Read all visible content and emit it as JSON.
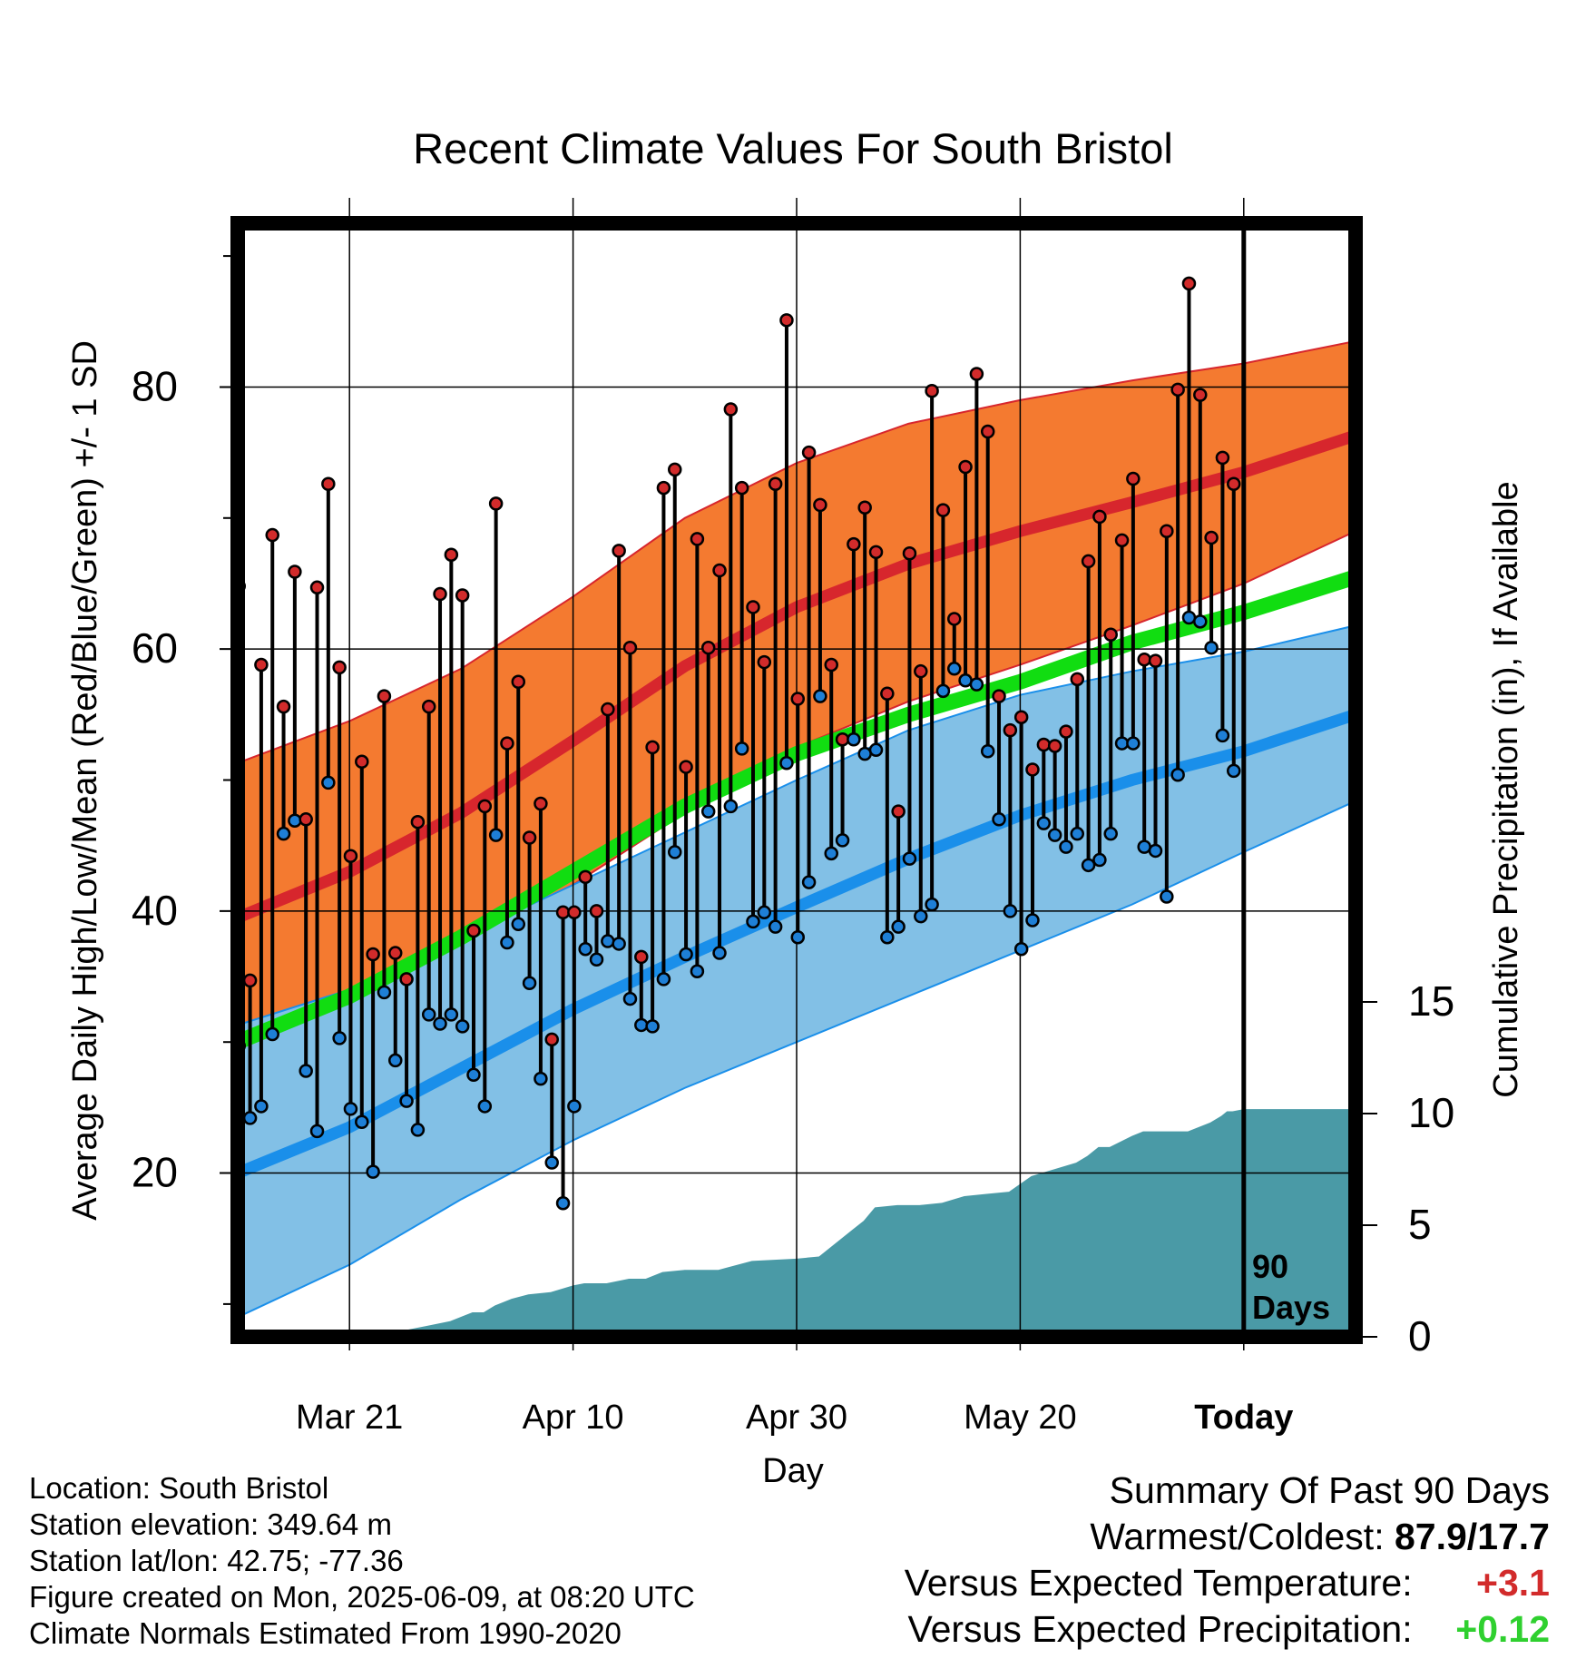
{
  "chart_data": {
    "type": "line",
    "title": "Recent Climate Values For South Bristol",
    "xlabel": "Day",
    "ylabel": "Average Daily High/Low/Mean (Red/Blue/Green) +/- 1 SD",
    "y2label": "Cumulative Precipitation (in), If Available",
    "x_tick_labels": [
      "Mar 21",
      "Apr 10",
      "Apr 30",
      "May 20",
      "Today"
    ],
    "y_ticks": [
      20,
      40,
      60,
      80
    ],
    "y2_ticks": [
      0,
      5,
      10,
      15
    ],
    "today_marker_label": "90 Days",
    "ylim": [
      7.5,
      92.5
    ],
    "y2lim": [
      0,
      15
    ],
    "x_days": [
      0,
      100
    ],
    "grid": true,
    "colors": {
      "high_band": "#f47a30",
      "high_mean": "#d7262d",
      "low_band": "#82c0e6",
      "low_mean": "#1a8fea",
      "mean": "#11dd11",
      "precip": "#4a9aa6",
      "high_marker": "#d22b2b",
      "low_marker": "#1e7fd6"
    },
    "normals": {
      "day": [
        0,
        10,
        20,
        30,
        40,
        50,
        60,
        70,
        80,
        90,
        100
      ],
      "high_mean": [
        39.5,
        43,
        47.5,
        53,
        58.7,
        63.2,
        66.5,
        69,
        71.2,
        73.5,
        76.3
      ],
      "high_upper": [
        51.3,
        54.5,
        58.5,
        64,
        70,
        74.2,
        77.2,
        79,
        80.5,
        81.8,
        83.5
      ],
      "high_lower": [
        28.2,
        32,
        36.5,
        42,
        47.5,
        52.5,
        56,
        58.8,
        61.8,
        65,
        69
      ],
      "low_mean": [
        20,
        23.5,
        28,
        32.5,
        36.5,
        40.3,
        44,
        47.3,
        50,
        52.2,
        55
      ],
      "low_upper": [
        31.3,
        34,
        38,
        42,
        46,
        50,
        53.8,
        56.5,
        58.3,
        59.8,
        61.8
      ],
      "low_lower": [
        9,
        13,
        18,
        22.5,
        26.5,
        30,
        33.5,
        37,
        40.5,
        44.5,
        48.4
      ],
      "mean": [
        30,
        33.5,
        38,
        43,
        48,
        52,
        55,
        57.5,
        60.5,
        62.8,
        65.5
      ]
    },
    "daily": {
      "start_day": 0,
      "high": [
        64.8,
        34.7,
        58.8,
        68.7,
        55.6,
        65.9,
        47,
        64.7,
        72.6,
        58.6,
        44.2,
        51.4,
        36.7,
        56.4,
        36.8,
        34.8,
        46.8,
        55.6,
        64.2,
        67.2,
        64.1,
        38.5,
        48,
        71.1,
        52.8,
        57.5,
        45.6,
        48.2,
        30.2,
        39.9,
        39.9,
        42.6,
        40,
        55.4,
        67.5,
        60.1,
        36.5,
        52.5,
        72.3,
        73.7,
        51,
        68.4,
        60.1,
        66,
        78.3,
        72.3,
        63.2,
        59,
        72.6,
        85.1,
        56.2,
        75,
        71,
        58.8,
        53.1,
        68,
        70.8,
        67.4,
        56.6,
        47.6,
        67.3,
        58.3,
        79.7,
        70.6,
        62.3,
        73.9,
        81,
        76.6,
        56.4,
        53.8,
        54.8,
        50.8,
        52.7,
        52.6,
        53.7,
        57.7,
        66.7,
        70.1,
        61.1,
        68.3,
        73,
        59.2,
        59.1,
        69,
        79.8,
        87.9,
        79.4,
        68.5,
        74.6,
        72.6
      ],
      "low": [
        29.7,
        24.2,
        25.1,
        30.6,
        45.9,
        46.9,
        27.8,
        23.2,
        49.8,
        30.3,
        24.9,
        23.9,
        20.1,
        33.8,
        28.6,
        25.5,
        23.3,
        32.1,
        31.4,
        32.1,
        31.2,
        27.5,
        25.1,
        45.8,
        37.6,
        39,
        34.5,
        27.2,
        20.8,
        17.7,
        25.1,
        37.1,
        36.3,
        37.7,
        37.5,
        33.3,
        31.3,
        31.2,
        34.8,
        44.5,
        36.7,
        35.4,
        47.6,
        36.8,
        48,
        52.4,
        39.2,
        39.9,
        38.8,
        51.3,
        38,
        42.2,
        56.4,
        44.4,
        45.4,
        53.1,
        52,
        52.3,
        38,
        38.8,
        44,
        39.6,
        40.5,
        56.8,
        58.5,
        57.6,
        57.3,
        52.2,
        47,
        40,
        37.1,
        39.3,
        46.7,
        45.8,
        44.9,
        45.9,
        43.5,
        43.9,
        45.9,
        52.8,
        52.8,
        44.9,
        44.6,
        41.1,
        50.4,
        62.4,
        62.1,
        60.1,
        53.4,
        50.7
      ]
    },
    "precip_cumulative": {
      "day": [
        0,
        10,
        10.1,
        13,
        15,
        17,
        19,
        21,
        22,
        23,
        24.5,
        26,
        28,
        30,
        31,
        32,
        33,
        35,
        36.5,
        38,
        40,
        43,
        46,
        50,
        52,
        53,
        55,
        56,
        57,
        59,
        61,
        63,
        65,
        67,
        69,
        71,
        73,
        75,
        76,
        77,
        78,
        80,
        81,
        83,
        85,
        87,
        88,
        88.5,
        89,
        90,
        100
      ],
      "value": [
        0,
        0,
        0.1,
        0.1,
        0.3,
        0.5,
        0.7,
        1.1,
        1.1,
        1.4,
        1.7,
        1.9,
        2,
        2.3,
        2.4,
        2.4,
        2.4,
        2.6,
        2.6,
        2.9,
        3,
        3,
        3.4,
        3.5,
        3.6,
        4,
        4.8,
        5.2,
        5.8,
        5.9,
        5.9,
        6,
        6.3,
        6.4,
        6.5,
        7.2,
        7.5,
        7.8,
        8.1,
        8.5,
        8.5,
        9,
        9.2,
        9.2,
        9.2,
        9.6,
        9.9,
        10.1,
        10.1,
        10.2,
        10.2
      ]
    }
  },
  "info": {
    "location": "Location: South Bristol",
    "elevation": "Station elevation: 349.64 m",
    "latlon": "Station lat/lon: 42.75; -77.36",
    "created": "Figure created on Mon, 2025-06-09, at 08:20 UTC",
    "normals": "Climate Normals Estimated From 1990-2020"
  },
  "summary": {
    "title": "Summary Of Past 90 Days",
    "warmest_label": "Warmest/Coldest:",
    "warmest_value": "87.9/17.7",
    "temp_label": "Versus Expected Temperature:",
    "temp_value": "+3.1",
    "temp_color": "#d22b2b",
    "precip_label": "Versus Expected Precipitation:",
    "precip_value": "+0.12",
    "precip_color": "#2fd02f"
  }
}
